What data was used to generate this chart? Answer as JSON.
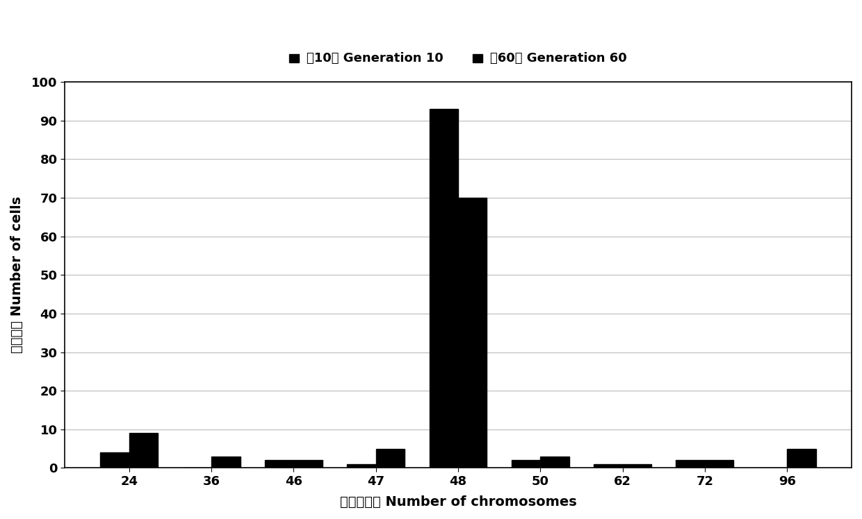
{
  "categories": [
    "24",
    "36",
    "46",
    "47",
    "48",
    "50",
    "62",
    "72",
    "96"
  ],
  "gen10": [
    4,
    0,
    2,
    1,
    93,
    2,
    1,
    2,
    0
  ],
  "gen60": [
    9,
    3,
    2,
    5,
    70,
    3,
    1,
    2,
    5
  ],
  "bar_color_gen10": "#000000",
  "bar_color_gen60": "#000000",
  "legend_label_gen10": "第10代 Generation 10",
  "legend_label_gen60": "第60代 Generation 60",
  "ylabel": "细胞数目 Number of cells",
  "xlabel": "染色体数目 Number of chromosomes",
  "ylim": [
    0,
    100
  ],
  "yticks": [
    0,
    10,
    20,
    30,
    40,
    50,
    60,
    70,
    80,
    90,
    100
  ],
  "bar_width": 0.35,
  "background_color": "#ffffff",
  "border_color": "#000000",
  "grid_color": "#bbbbbb",
  "label_fontsize": 14,
  "tick_fontsize": 13,
  "legend_fontsize": 13
}
